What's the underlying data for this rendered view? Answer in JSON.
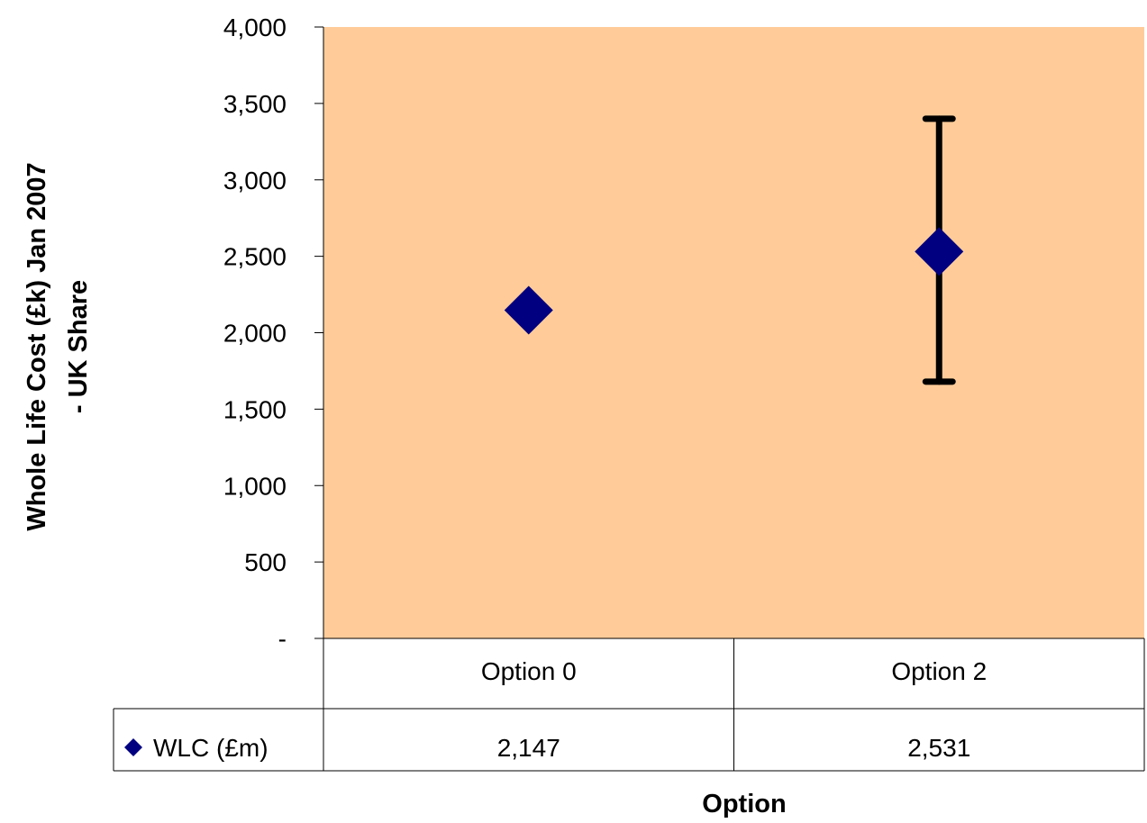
{
  "chart_data": {
    "type": "scatter",
    "categories": [
      "Option 0",
      "Option 2"
    ],
    "series": [
      {
        "name": "WLC (£m)",
        "values": [
          2147,
          2531
        ],
        "error_high": [
          null,
          3400
        ],
        "error_low": [
          null,
          1680
        ]
      }
    ],
    "xlabel": "Option",
    "ylabel_lines": [
      "Whole Life Cost (£k) Jan 2007",
      "- UK Share"
    ],
    "ylim": [
      0,
      4000
    ],
    "yticks": [
      0,
      500,
      1000,
      1500,
      2000,
      2500,
      3000,
      3500,
      4000
    ],
    "ytick_labels": [
      "-",
      "500",
      "1,000",
      "1,500",
      "2,000",
      "2,500",
      "3,000",
      "3,500",
      "4,000"
    ],
    "data_table": {
      "legend_label": "WLC (£m)",
      "values_text": [
        "2,147",
        "2,531"
      ]
    },
    "grid": false,
    "legend": "data-table",
    "colors": {
      "plot_background": "#FFCC99",
      "marker": "#000080",
      "error_bar": "#000000"
    }
  }
}
